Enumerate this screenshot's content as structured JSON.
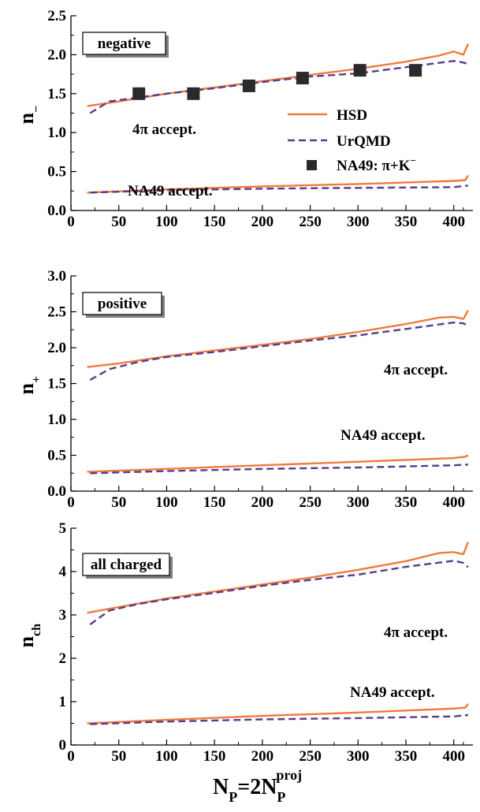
{
  "colors": {
    "hsd": "#f07a3c",
    "urqmd": "#5a3c8c",
    "marker": "#2a2a2a",
    "axis": "#000000"
  },
  "legend": {
    "hsd": "HSD",
    "urqmd": "UrQMD",
    "na49": "NA49: π+K",
    "na49_sup": "−"
  },
  "x_axis": {
    "label_main": "N",
    "label_sub": "P",
    "label_mid": "=2N",
    "label_sub2": "P",
    "label_sup2": "proj"
  },
  "chart_data": [
    {
      "type": "line",
      "panel": "negative",
      "box_label": "negative",
      "ylabel": "n",
      "ylabel_sub": "−",
      "xlim": [
        0,
        420
      ],
      "ylim": [
        0.0,
        2.5
      ],
      "xticks": [
        "0",
        "50",
        "100",
        "150",
        "200",
        "250",
        "300",
        "350",
        "400"
      ],
      "yticks": [
        "0.0",
        "0.5",
        "1.0",
        "1.5",
        "2.0",
        "2.5"
      ],
      "annotations": [
        "4π accept.",
        "NA49 accept."
      ],
      "series": [
        {
          "name": "HSD",
          "style": "solid",
          "x": [
            17,
            50,
            100,
            150,
            200,
            250,
            300,
            350,
            385,
            400,
            410,
            415
          ],
          "y": [
            1.34,
            1.4,
            1.5,
            1.58,
            1.66,
            1.74,
            1.82,
            1.91,
            1.99,
            2.04,
            2.0,
            2.14
          ]
        },
        {
          "name": "UrQMD",
          "style": "dashed",
          "x": [
            20,
            40,
            70,
            100,
            150,
            200,
            250,
            300,
            350,
            400,
            410,
            415
          ],
          "y": [
            1.25,
            1.4,
            1.45,
            1.5,
            1.57,
            1.65,
            1.72,
            1.76,
            1.84,
            1.92,
            1.9,
            1.88
          ]
        },
        {
          "name": "HSD",
          "style": "solid",
          "x": [
            17,
            100,
            200,
            300,
            400,
            412,
            415
          ],
          "y": [
            0.23,
            0.27,
            0.31,
            0.34,
            0.38,
            0.39,
            0.45
          ]
        },
        {
          "name": "UrQMD",
          "style": "dashed",
          "x": [
            20,
            100,
            200,
            300,
            400,
            415
          ],
          "y": [
            0.23,
            0.26,
            0.28,
            0.29,
            0.3,
            0.32
          ]
        },
        {
          "name": "NA49: π+K−",
          "style": "markers",
          "x": [
            71,
            128,
            186,
            242,
            302,
            360
          ],
          "y": [
            1.5,
            1.5,
            1.6,
            1.7,
            1.8,
            1.8
          ]
        }
      ]
    },
    {
      "type": "line",
      "panel": "positive",
      "box_label": "positive",
      "ylabel": "n",
      "ylabel_sub": "+",
      "xlim": [
        0,
        420
      ],
      "ylim": [
        0.0,
        3.0
      ],
      "xticks": [
        "0",
        "50",
        "100",
        "150",
        "200",
        "250",
        "300",
        "350",
        "400"
      ],
      "yticks": [
        "0.0",
        "0.5",
        "1.0",
        "1.5",
        "2.0",
        "2.5",
        "3.0"
      ],
      "annotations": [
        "4π accept.",
        "NA49 accept."
      ],
      "series": [
        {
          "name": "HSD",
          "style": "solid",
          "x": [
            17,
            50,
            100,
            150,
            200,
            250,
            300,
            350,
            385,
            400,
            410,
            415
          ],
          "y": [
            1.73,
            1.78,
            1.88,
            1.96,
            2.04,
            2.12,
            2.22,
            2.33,
            2.42,
            2.43,
            2.4,
            2.52
          ]
        },
        {
          "name": "UrQMD",
          "style": "dashed",
          "x": [
            20,
            40,
            70,
            100,
            150,
            200,
            250,
            300,
            350,
            400,
            410,
            415
          ],
          "y": [
            1.55,
            1.7,
            1.8,
            1.87,
            1.94,
            2.02,
            2.1,
            2.17,
            2.26,
            2.35,
            2.34,
            2.3
          ]
        },
        {
          "name": "HSD",
          "style": "solid",
          "x": [
            17,
            100,
            200,
            300,
            400,
            412,
            415
          ],
          "y": [
            0.27,
            0.31,
            0.36,
            0.41,
            0.46,
            0.48,
            0.5
          ]
        },
        {
          "name": "UrQMD",
          "style": "dashed",
          "x": [
            20,
            100,
            200,
            300,
            400,
            415
          ],
          "y": [
            0.25,
            0.28,
            0.31,
            0.33,
            0.36,
            0.37
          ]
        }
      ]
    },
    {
      "type": "line",
      "panel": "all charged",
      "box_label": "all charged",
      "ylabel": "n",
      "ylabel_sub": "ch",
      "xlim": [
        0,
        420
      ],
      "ylim": [
        0,
        5
      ],
      "xticks": [
        "0",
        "50",
        "100",
        "150",
        "200",
        "250",
        "300",
        "350",
        "400"
      ],
      "yticks": [
        "0",
        "1",
        "2",
        "3",
        "4",
        "5"
      ],
      "annotations": [
        "4π accept.",
        "NA49 accept."
      ],
      "series": [
        {
          "name": "HSD",
          "style": "solid",
          "x": [
            17,
            50,
            100,
            150,
            200,
            250,
            300,
            350,
            385,
            400,
            410,
            415
          ],
          "y": [
            3.05,
            3.18,
            3.38,
            3.54,
            3.7,
            3.86,
            4.04,
            4.24,
            4.43,
            4.45,
            4.4,
            4.68
          ]
        },
        {
          "name": "UrQMD",
          "style": "dashed",
          "x": [
            20,
            40,
            70,
            100,
            150,
            200,
            250,
            300,
            350,
            400,
            410,
            415
          ],
          "y": [
            2.78,
            3.1,
            3.25,
            3.36,
            3.51,
            3.67,
            3.81,
            3.93,
            4.11,
            4.25,
            4.2,
            4.1
          ]
        },
        {
          "name": "HSD",
          "style": "solid",
          "x": [
            17,
            100,
            200,
            300,
            400,
            412,
            415
          ],
          "y": [
            0.5,
            0.58,
            0.67,
            0.75,
            0.84,
            0.86,
            0.95
          ]
        },
        {
          "name": "UrQMD",
          "style": "dashed",
          "x": [
            20,
            100,
            200,
            300,
            400,
            415
          ],
          "y": [
            0.48,
            0.54,
            0.59,
            0.62,
            0.66,
            0.69
          ]
        }
      ]
    }
  ]
}
